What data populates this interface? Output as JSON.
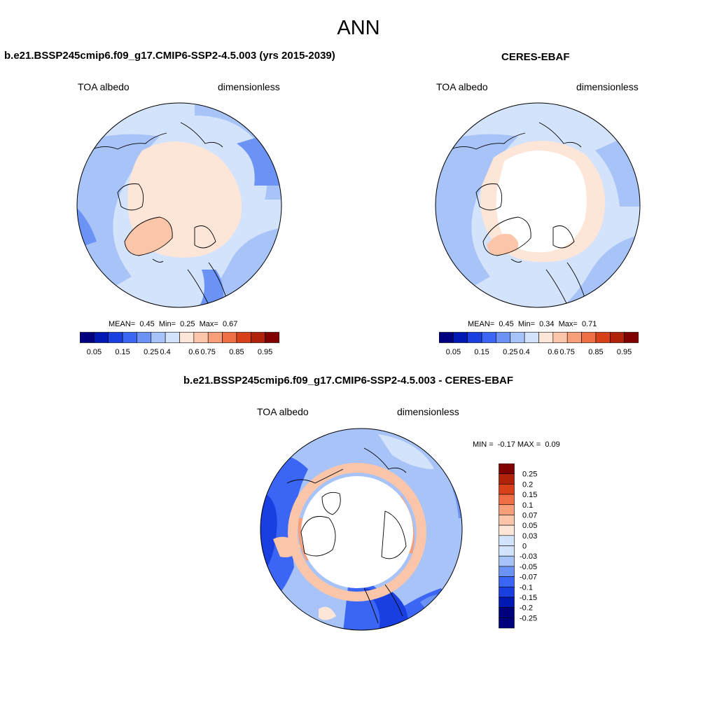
{
  "title": "ANN",
  "palette": {
    "c1": "#00007f",
    "c2": "#0019b2",
    "c3": "#1a3fe0",
    "c4": "#3b66f5",
    "c5": "#6b93f5",
    "c6": "#a7c3f8",
    "c7": "#d3e3fb",
    "c8": "#fde6d8",
    "c9": "#fbc5aa",
    "c10": "#f89e78",
    "c11": "#f06e45",
    "c12": "#d8401a",
    "c13": "#b0220a",
    "c14": "#800000",
    "white": "#ffffff",
    "coast": "#000000"
  },
  "panels": [
    {
      "id": "model",
      "title": "b.e21.BSSP245cmip6.f09_g17.CMIP6-SSP2-4.5.003 (yrs 2015-2039)",
      "left_label": "TOA albedo",
      "right_label": "dimensionless",
      "stats": "MEAN=  0.45  Min=  0.25  Max=  0.67",
      "colorbar_ticks": [
        "0.05",
        "0.15",
        "0.25",
        "0.4",
        "0.6",
        "0.75",
        "0.85",
        "0.95"
      ]
    },
    {
      "id": "obs",
      "title": "CERES-EBAF",
      "left_label": "TOA albedo",
      "right_label": "dimensionless",
      "stats": "MEAN=  0.45  Min=  0.34  Max=  0.71",
      "colorbar_ticks": [
        "0.05",
        "0.15",
        "0.25",
        "0.4",
        "0.6",
        "0.75",
        "0.85",
        "0.95"
      ]
    },
    {
      "id": "diff",
      "title": "b.e21.BSSP245cmip6.f09_g17.CMIP6-SSP2-4.5.003 - CERES-EBAF",
      "left_label": "TOA albedo",
      "right_label": "dimensionless",
      "stats": "MIN =  -0.17 MAX =  0.09",
      "colorbar_ticks": [
        "0.25",
        "0.2",
        "0.15",
        "0.1",
        "0.07",
        "0.05",
        "0.03",
        "0",
        "-0.03",
        "-0.05",
        "-0.07",
        "-0.1",
        "-0.15",
        "-0.2",
        "-0.25"
      ]
    }
  ]
}
